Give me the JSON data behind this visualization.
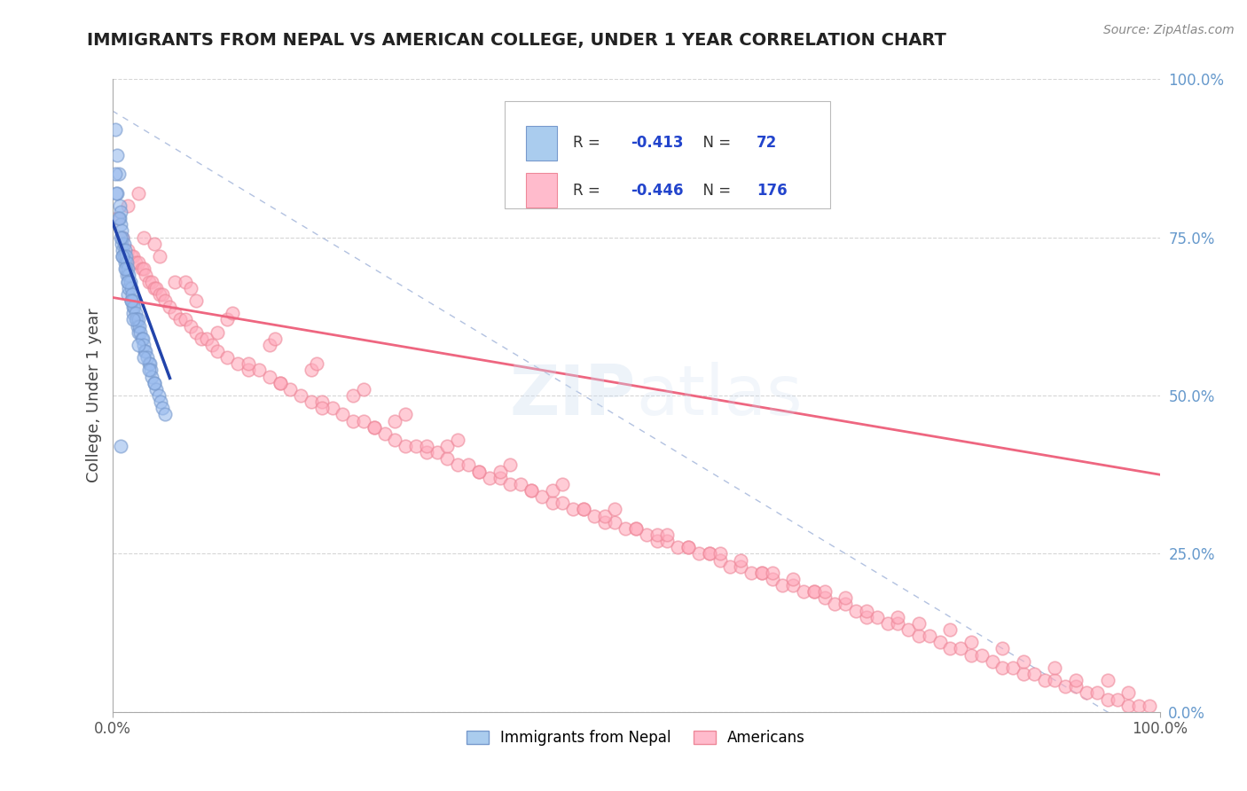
{
  "title": "IMMIGRANTS FROM NEPAL VS AMERICAN COLLEGE, UNDER 1 YEAR CORRELATION CHART",
  "source": "Source: ZipAtlas.com",
  "ylabel": "College, Under 1 year",
  "watermark": "ZIPAtlas",
  "legend_r1_val": "-0.413",
  "legend_n1_val": "72",
  "legend_r2_val": "-0.446",
  "legend_n2_val": "176",
  "blue_scatter_color": "#99BBEE",
  "blue_edge_color": "#7799CC",
  "pink_scatter_color": "#FFAABC",
  "pink_edge_color": "#EE8899",
  "blue_line_color": "#2244AA",
  "pink_line_color": "#EE6680",
  "ref_line_color": "#AABBDD",
  "legend_blue_fill": "#AACCEE",
  "legend_pink_fill": "#FFBBCC",
  "title_color": "#222222",
  "background_color": "#FFFFFF",
  "grid_color": "#CCCCCC",
  "right_label_color": "#6699CC",
  "nepal_x": [
    0.003,
    0.005,
    0.005,
    0.006,
    0.007,
    0.007,
    0.008,
    0.008,
    0.009,
    0.009,
    0.01,
    0.01,
    0.01,
    0.011,
    0.011,
    0.012,
    0.012,
    0.013,
    0.013,
    0.014,
    0.014,
    0.015,
    0.015,
    0.015,
    0.016,
    0.016,
    0.017,
    0.018,
    0.018,
    0.019,
    0.02,
    0.02,
    0.02,
    0.021,
    0.022,
    0.022,
    0.023,
    0.024,
    0.025,
    0.025,
    0.026,
    0.027,
    0.028,
    0.029,
    0.03,
    0.031,
    0.032,
    0.033,
    0.035,
    0.036,
    0.037,
    0.038,
    0.04,
    0.042,
    0.044,
    0.046,
    0.048,
    0.05,
    0.003,
    0.004,
    0.006,
    0.008,
    0.01,
    0.012,
    0.015,
    0.018,
    0.02,
    0.025,
    0.03,
    0.035,
    0.04,
    0.008
  ],
  "nepal_y": [
    0.92,
    0.88,
    0.82,
    0.85,
    0.8,
    0.78,
    0.79,
    0.77,
    0.76,
    0.74,
    0.75,
    0.73,
    0.72,
    0.74,
    0.72,
    0.73,
    0.71,
    0.72,
    0.7,
    0.71,
    0.69,
    0.7,
    0.68,
    0.66,
    0.69,
    0.67,
    0.68,
    0.67,
    0.65,
    0.66,
    0.65,
    0.64,
    0.63,
    0.64,
    0.63,
    0.62,
    0.62,
    0.61,
    0.62,
    0.6,
    0.61,
    0.6,
    0.59,
    0.59,
    0.58,
    0.57,
    0.57,
    0.56,
    0.55,
    0.55,
    0.54,
    0.53,
    0.52,
    0.51,
    0.5,
    0.49,
    0.48,
    0.47,
    0.85,
    0.82,
    0.78,
    0.75,
    0.72,
    0.7,
    0.68,
    0.65,
    0.62,
    0.58,
    0.56,
    0.54,
    0.52,
    0.42
  ],
  "american_x": [
    0.005,
    0.01,
    0.015,
    0.018,
    0.02,
    0.022,
    0.025,
    0.028,
    0.03,
    0.032,
    0.035,
    0.038,
    0.04,
    0.042,
    0.045,
    0.048,
    0.05,
    0.055,
    0.06,
    0.065,
    0.07,
    0.075,
    0.08,
    0.085,
    0.09,
    0.095,
    0.1,
    0.11,
    0.12,
    0.13,
    0.14,
    0.15,
    0.16,
    0.17,
    0.18,
    0.19,
    0.2,
    0.21,
    0.22,
    0.23,
    0.24,
    0.25,
    0.26,
    0.27,
    0.28,
    0.29,
    0.3,
    0.31,
    0.32,
    0.33,
    0.34,
    0.35,
    0.36,
    0.37,
    0.38,
    0.39,
    0.4,
    0.41,
    0.42,
    0.43,
    0.44,
    0.45,
    0.46,
    0.47,
    0.48,
    0.49,
    0.5,
    0.51,
    0.52,
    0.53,
    0.54,
    0.55,
    0.56,
    0.57,
    0.58,
    0.59,
    0.6,
    0.61,
    0.62,
    0.63,
    0.64,
    0.65,
    0.66,
    0.67,
    0.68,
    0.69,
    0.7,
    0.71,
    0.72,
    0.73,
    0.74,
    0.75,
    0.76,
    0.77,
    0.78,
    0.79,
    0.8,
    0.81,
    0.82,
    0.83,
    0.84,
    0.85,
    0.86,
    0.87,
    0.88,
    0.89,
    0.9,
    0.91,
    0.92,
    0.93,
    0.94,
    0.95,
    0.96,
    0.97,
    0.98,
    0.99,
    0.025,
    0.045,
    0.06,
    0.08,
    0.1,
    0.13,
    0.16,
    0.2,
    0.25,
    0.3,
    0.35,
    0.4,
    0.45,
    0.5,
    0.55,
    0.6,
    0.65,
    0.7,
    0.75,
    0.8,
    0.85,
    0.9,
    0.95,
    0.03,
    0.07,
    0.11,
    0.15,
    0.19,
    0.23,
    0.27,
    0.32,
    0.37,
    0.42,
    0.47,
    0.52,
    0.57,
    0.62,
    0.67,
    0.72,
    0.77,
    0.82,
    0.87,
    0.92,
    0.97,
    0.015,
    0.04,
    0.075,
    0.115,
    0.155,
    0.195,
    0.24,
    0.28,
    0.33,
    0.38,
    0.43,
    0.48,
    0.53,
    0.58,
    0.63,
    0.68
  ],
  "american_y": [
    0.78,
    0.75,
    0.73,
    0.72,
    0.72,
    0.71,
    0.71,
    0.7,
    0.7,
    0.69,
    0.68,
    0.68,
    0.67,
    0.67,
    0.66,
    0.66,
    0.65,
    0.64,
    0.63,
    0.62,
    0.62,
    0.61,
    0.6,
    0.59,
    0.59,
    0.58,
    0.57,
    0.56,
    0.55,
    0.54,
    0.54,
    0.53,
    0.52,
    0.51,
    0.5,
    0.49,
    0.49,
    0.48,
    0.47,
    0.46,
    0.46,
    0.45,
    0.44,
    0.43,
    0.42,
    0.42,
    0.41,
    0.41,
    0.4,
    0.39,
    0.39,
    0.38,
    0.37,
    0.37,
    0.36,
    0.36,
    0.35,
    0.34,
    0.33,
    0.33,
    0.32,
    0.32,
    0.31,
    0.3,
    0.3,
    0.29,
    0.29,
    0.28,
    0.27,
    0.27,
    0.26,
    0.26,
    0.25,
    0.25,
    0.24,
    0.23,
    0.23,
    0.22,
    0.22,
    0.21,
    0.2,
    0.2,
    0.19,
    0.19,
    0.18,
    0.17,
    0.17,
    0.16,
    0.15,
    0.15,
    0.14,
    0.14,
    0.13,
    0.12,
    0.12,
    0.11,
    0.1,
    0.1,
    0.09,
    0.09,
    0.08,
    0.07,
    0.07,
    0.06,
    0.06,
    0.05,
    0.05,
    0.04,
    0.04,
    0.03,
    0.03,
    0.02,
    0.02,
    0.01,
    0.01,
    0.01,
    0.82,
    0.72,
    0.68,
    0.65,
    0.6,
    0.55,
    0.52,
    0.48,
    0.45,
    0.42,
    0.38,
    0.35,
    0.32,
    0.29,
    0.26,
    0.24,
    0.21,
    0.18,
    0.15,
    0.13,
    0.1,
    0.07,
    0.05,
    0.75,
    0.68,
    0.62,
    0.58,
    0.54,
    0.5,
    0.46,
    0.42,
    0.38,
    0.35,
    0.31,
    0.28,
    0.25,
    0.22,
    0.19,
    0.16,
    0.14,
    0.11,
    0.08,
    0.05,
    0.03,
    0.8,
    0.74,
    0.67,
    0.63,
    0.59,
    0.55,
    0.51,
    0.47,
    0.43,
    0.39,
    0.36,
    0.32,
    0.28,
    0.25,
    0.22,
    0.19
  ],
  "nepal_trend_x": [
    0.0,
    0.055
  ],
  "nepal_trend_y_intercept": 0.775,
  "nepal_trend_slope": -4.5,
  "american_trend_x": [
    0.0,
    1.0
  ],
  "american_trend_y_intercept": 0.655,
  "american_trend_slope": -0.28,
  "xlim": [
    0.0,
    1.0
  ],
  "ylim": [
    0.0,
    1.0
  ],
  "yticks": [
    0.0,
    0.25,
    0.5,
    0.75,
    1.0
  ],
  "ytick_labels_right": [
    "0.0%",
    "25.0%",
    "50.0%",
    "75.0%",
    "100.0%"
  ],
  "xtick_labels": [
    "0.0%",
    "100.0%"
  ],
  "figsize": [
    14.06,
    8.92
  ],
  "dpi": 100
}
